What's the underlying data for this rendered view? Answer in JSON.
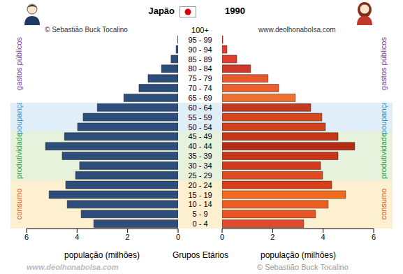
{
  "chart_data": {
    "type": "bar",
    "orientation": "horizontal",
    "title": "Japão",
    "subtitle": "1990",
    "xlabel": "população (milhões)",
    "ylabel": "Grupos Etários",
    "credits": [
      "© Sebastião Buck Tocalino",
      "www.deolhonabolsa.com"
    ],
    "categories": [
      "0 - 4",
      "5 - 9",
      "10 - 14",
      "15 - 19",
      "20 - 24",
      "25 - 29",
      "30 - 34",
      "35 - 39",
      "40 - 44",
      "45 - 49",
      "50 - 54",
      "55 - 59",
      "60 - 64",
      "65 - 69",
      "70 - 74",
      "75 - 79",
      "80 - 84",
      "85 - 89",
      "90 - 94",
      "95 - 99",
      "100+"
    ],
    "series": [
      {
        "color": "#2d4e7a",
        "values": [
          3.34,
          3.84,
          4.39,
          5.11,
          4.45,
          4.06,
          3.9,
          4.59,
          5.25,
          4.5,
          3.98,
          3.76,
          3.2,
          2.15,
          1.55,
          1.19,
          0.66,
          0.28,
          0.08,
          0.01,
          0
        ]
      },
      {
        "colors": [
          "#e2492a",
          "#ea5525",
          "#ee5e22",
          "#f26a1d",
          "#d8401c",
          "#e04a22",
          "#d23a1c",
          "#c8361a",
          "#b42c16",
          "#c4381a",
          "#d0401c",
          "#d8461e",
          "#c43a1e",
          "#f07030",
          "#ec6030",
          "#e85a2e",
          "#d0382a",
          "#e0402e",
          "#e83a2e",
          "#e83a2e",
          "#e83a2e"
        ],
        "values": [
          3.23,
          3.7,
          4.2,
          4.89,
          4.34,
          3.98,
          3.9,
          4.59,
          5.25,
          4.59,
          4.09,
          3.95,
          3.51,
          2.9,
          2.24,
          1.82,
          1.13,
          0.58,
          0.19,
          0.03,
          0
        ]
      }
    ],
    "xlim": [
      0,
      6
    ],
    "xticks": [
      0,
      2,
      4,
      6
    ],
    "annotations": [
      {
        "text": "consumo",
        "from": "0 - 4",
        "to": "20 - 24",
        "color": "#e05a1a"
      },
      {
        "text": "produtividade",
        "from": "25 - 29",
        "to": "45 - 49",
        "color": "#2e9e3e"
      },
      {
        "text": "poupança",
        "from": "50 - 54",
        "to": "60 - 64",
        "color": "#3a8ec4"
      },
      {
        "text": "gastos públicos",
        "from": "65 - 69",
        "to": "100+",
        "color": "#8040a0"
      }
    ]
  }
}
